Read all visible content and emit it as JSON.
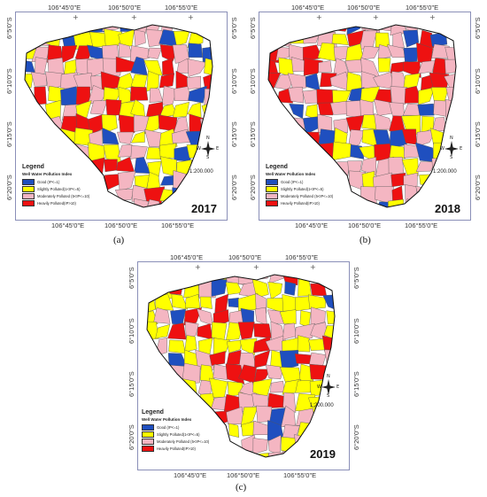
{
  "panels": [
    {
      "caption": "(a)",
      "year": "2017",
      "lon_ticks": [
        "106°45'0\"E",
        "106°50'0\"E",
        "106°55'0\"E"
      ],
      "lat_ticks": [
        "6°5'0\"S",
        "6°10'0\"S",
        "6°15'0\"S",
        "6°20'0\"S"
      ],
      "scale": "1:200.000",
      "legend": {
        "title": "Legend",
        "subtitle": "Well Water Pollution Index",
        "items": [
          "Good (IP<=1)",
          "Slightly Polluted(1<IP<=5)",
          "Moderately Polluted (5<IP<=10)",
          "Heavily Polluted(IP>10)"
        ]
      },
      "north": {
        "n": "N",
        "s": "S",
        "e": "E",
        "w": "W"
      }
    },
    {
      "caption": "(b)",
      "year": "2018",
      "lon_ticks": [
        "106°45'0\"E",
        "106°50'0\"E",
        "106°55'0\"E"
      ],
      "lat_ticks": [
        "6°5'0\"S",
        "6°10'0\"S",
        "6°15'0\"S",
        "6°20'0\"S"
      ],
      "scale": "1:200.000",
      "legend": {
        "title": "Legend",
        "subtitle": "Well Water Pollution Index",
        "items": [
          "Good (IP<=1)",
          "Slightly Polluted(1<IP<=5)",
          "Moderately Polluted (5<IP<=10)",
          "Heavily Polluted(IP>10)"
        ]
      },
      "north": {
        "n": "N",
        "s": "S",
        "e": "E",
        "w": "W"
      }
    },
    {
      "caption": "(c)",
      "year": "2019",
      "lon_ticks": [
        "106°45'0\"E",
        "106°50'0\"E",
        "106°55'0\"E"
      ],
      "lat_ticks": [
        "6°5'0\"S",
        "6°10'0\"S",
        "6°15'0\"S",
        "6°20'0\"S"
      ],
      "scale": "1:200.000",
      "legend": {
        "title": "Legend",
        "subtitle": "Well Water Pollution Index",
        "items": [
          "Good (IP<=1)",
          "Slightly Polluted(1<IP<=5)",
          "Moderately Polluted (5<IP<=10)",
          "Heavily Polluted(IP>10)"
        ]
      },
      "north": {
        "n": "N",
        "s": "S",
        "e": "E",
        "w": "W"
      }
    }
  ],
  "colors": {
    "good": "#1f4fbf",
    "slight": "#ffff00",
    "moderate": "#f4b6c2",
    "heavy": "#ee1111",
    "frame": "#8a8fb8"
  }
}
